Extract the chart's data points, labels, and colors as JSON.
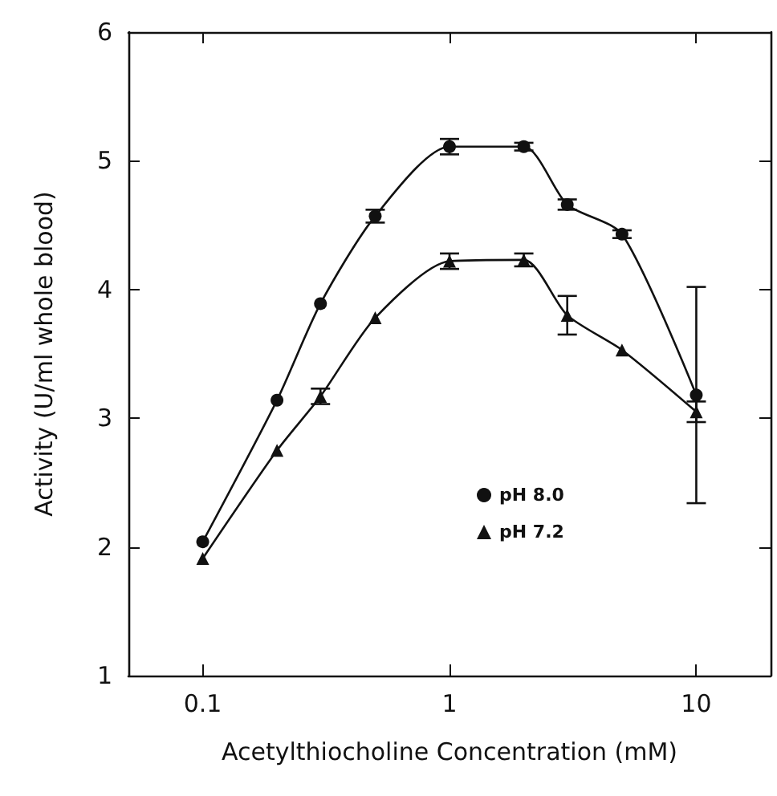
{
  "chart_data": {
    "type": "line",
    "xlabel": "Acetylthiocholine Concentration (mM)",
    "ylabel": "Activity (U/ml whole blood)",
    "log": "x",
    "xlim": [
      0.05,
      20
    ],
    "xticks": [
      0.1,
      1,
      10
    ],
    "ylim": [
      1,
      6
    ],
    "yticks": [
      1,
      2,
      3,
      4,
      5,
      6
    ],
    "grid": false,
    "legend": "right",
    "x": [
      0.1,
      0.2,
      0.3,
      0.5,
      1,
      2,
      3,
      5,
      10
    ],
    "series": [
      {
        "name": "pH 8.0",
        "color": "#111111",
        "marker": "circle",
        "values": [
          2.04,
          3.14,
          3.89,
          4.57,
          5.11,
          5.11,
          4.66,
          4.43,
          3.18
        ],
        "errors": [
          null,
          null,
          null,
          0.05,
          0.06,
          0.03,
          0.04,
          0.03,
          0.84
        ]
      },
      {
        "name": "pH 7.2",
        "color": "#111111",
        "marker": "triangle",
        "values": [
          1.91,
          2.75,
          3.17,
          3.78,
          4.22,
          4.23,
          3.8,
          3.53,
          3.05
        ],
        "errors": [
          null,
          null,
          0.06,
          null,
          0.06,
          0.05,
          0.15,
          null,
          0.08
        ]
      }
    ]
  }
}
